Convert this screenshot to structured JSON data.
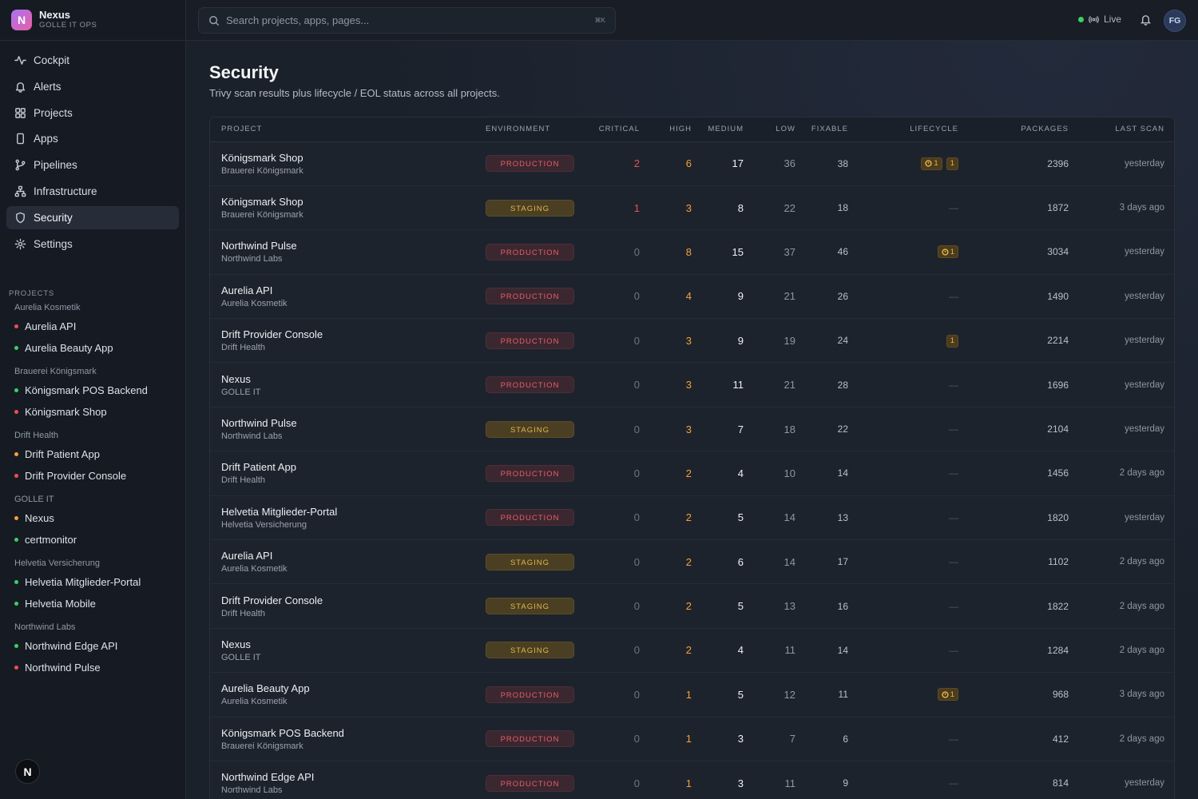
{
  "brand": {
    "logo_letter": "N",
    "name": "Nexus",
    "subtitle": "GOLLE IT OPS"
  },
  "nav": [
    {
      "label": "Cockpit",
      "icon": "activity-icon"
    },
    {
      "label": "Alerts",
      "icon": "bell-icon"
    },
    {
      "label": "Projects",
      "icon": "grid-icon"
    },
    {
      "label": "Apps",
      "icon": "phone-icon"
    },
    {
      "label": "Pipelines",
      "icon": "git-branch-icon"
    },
    {
      "label": "Infrastructure",
      "icon": "network-icon"
    },
    {
      "label": "Security",
      "icon": "shield-icon",
      "active": true
    },
    {
      "label": "Settings",
      "icon": "gear-icon"
    }
  ],
  "sidebar_projects": {
    "label": "PROJECTS",
    "groups": [
      {
        "name": "Aurelia Kosmetik",
        "items": [
          {
            "label": "Aurelia API",
            "status_color": "#ef4c56"
          },
          {
            "label": "Aurelia Beauty App",
            "status_color": "#3ccf63"
          }
        ]
      },
      {
        "name": "Brauerei Königsmark",
        "items": [
          {
            "label": "Königsmark POS Backend",
            "status_color": "#3ccf63"
          },
          {
            "label": "Königsmark Shop",
            "status_color": "#ef4c56"
          }
        ]
      },
      {
        "name": "Drift Health",
        "items": [
          {
            "label": "Drift Patient App",
            "status_color": "#f3a13a"
          },
          {
            "label": "Drift Provider Console",
            "status_color": "#ef4c56"
          }
        ]
      },
      {
        "name": "GOLLE IT",
        "items": [
          {
            "label": "Nexus",
            "status_color": "#f3a13a"
          },
          {
            "label": "certmonitor",
            "status_color": "#3ccf63"
          }
        ]
      },
      {
        "name": "Helvetia Versicherung",
        "items": [
          {
            "label": "Helvetia Mitglieder-Portal",
            "status_color": "#3ccf63"
          },
          {
            "label": "Helvetia Mobile",
            "status_color": "#3ccf63"
          }
        ]
      },
      {
        "name": "Northwind Labs",
        "items": [
          {
            "label": "Northwind Edge API",
            "status_color": "#3ccf63"
          },
          {
            "label": "Northwind Pulse",
            "status_color": "#ef4c56"
          }
        ]
      }
    ]
  },
  "bottom_badge": "N",
  "topbar": {
    "search_placeholder": "Search projects, apps, pages...",
    "shortcut": "⌘K",
    "live_label": "Live",
    "avatar_initials": "FG"
  },
  "page": {
    "title": "Security",
    "description": "Trivy scan results plus lifecycle / EOL status across all projects."
  },
  "table": {
    "columns": [
      "PROJECT",
      "ENVIRONMENT",
      "CRITICAL",
      "HIGH",
      "MEDIUM",
      "LOW",
      "FIXABLE",
      "LIFECYCLE",
      "PACKAGES",
      "LAST SCAN"
    ],
    "rows": [
      {
        "name": "Königsmark Shop",
        "client": "Brauerei Königsmark",
        "env": "PRODUCTION",
        "critical": "2",
        "high": "6",
        "medium": "17",
        "low": "36",
        "fixable": "38",
        "lifecycle": [
          {
            "type": "eol",
            "count": "1"
          },
          {
            "type": "plain",
            "count": "1"
          }
        ],
        "packages": "2396",
        "last_scan": "yesterday"
      },
      {
        "name": "Königsmark Shop",
        "client": "Brauerei Königsmark",
        "env": "STAGING",
        "critical": "1",
        "high": "3",
        "medium": "8",
        "low": "22",
        "fixable": "18",
        "lifecycle": [],
        "packages": "1872",
        "last_scan": "3 days ago"
      },
      {
        "name": "Northwind Pulse",
        "client": "Northwind Labs",
        "env": "PRODUCTION",
        "critical": "0",
        "high": "8",
        "medium": "15",
        "low": "37",
        "fixable": "46",
        "lifecycle": [
          {
            "type": "eol",
            "count": "1"
          }
        ],
        "packages": "3034",
        "last_scan": "yesterday"
      },
      {
        "name": "Aurelia API",
        "client": "Aurelia Kosmetik",
        "env": "PRODUCTION",
        "critical": "0",
        "high": "4",
        "medium": "9",
        "low": "21",
        "fixable": "26",
        "lifecycle": [],
        "packages": "1490",
        "last_scan": "yesterday"
      },
      {
        "name": "Drift Provider Console",
        "client": "Drift Health",
        "env": "PRODUCTION",
        "critical": "0",
        "high": "3",
        "medium": "9",
        "low": "19",
        "fixable": "24",
        "lifecycle": [
          {
            "type": "plain",
            "count": "1"
          }
        ],
        "packages": "2214",
        "last_scan": "yesterday"
      },
      {
        "name": "Nexus",
        "client": "GOLLE IT",
        "env": "PRODUCTION",
        "critical": "0",
        "high": "3",
        "medium": "11",
        "low": "21",
        "fixable": "28",
        "lifecycle": [],
        "packages": "1696",
        "last_scan": "yesterday"
      },
      {
        "name": "Northwind Pulse",
        "client": "Northwind Labs",
        "env": "STAGING",
        "critical": "0",
        "high": "3",
        "medium": "7",
        "low": "18",
        "fixable": "22",
        "lifecycle": [],
        "packages": "2104",
        "last_scan": "yesterday"
      },
      {
        "name": "Drift Patient App",
        "client": "Drift Health",
        "env": "PRODUCTION",
        "critical": "0",
        "high": "2",
        "medium": "4",
        "low": "10",
        "fixable": "14",
        "lifecycle": [],
        "packages": "1456",
        "last_scan": "2 days ago"
      },
      {
        "name": "Helvetia Mitglieder-Portal",
        "client": "Helvetia Versicherung",
        "env": "PRODUCTION",
        "critical": "0",
        "high": "2",
        "medium": "5",
        "low": "14",
        "fixable": "13",
        "lifecycle": [],
        "packages": "1820",
        "last_scan": "yesterday"
      },
      {
        "name": "Aurelia API",
        "client": "Aurelia Kosmetik",
        "env": "STAGING",
        "critical": "0",
        "high": "2",
        "medium": "6",
        "low": "14",
        "fixable": "17",
        "lifecycle": [],
        "packages": "1102",
        "last_scan": "2 days ago"
      },
      {
        "name": "Drift Provider Console",
        "client": "Drift Health",
        "env": "STAGING",
        "critical": "0",
        "high": "2",
        "medium": "5",
        "low": "13",
        "fixable": "16",
        "lifecycle": [],
        "packages": "1822",
        "last_scan": "2 days ago"
      },
      {
        "name": "Nexus",
        "client": "GOLLE IT",
        "env": "STAGING",
        "critical": "0",
        "high": "2",
        "medium": "4",
        "low": "11",
        "fixable": "14",
        "lifecycle": [],
        "packages": "1284",
        "last_scan": "2 days ago"
      },
      {
        "name": "Aurelia Beauty App",
        "client": "Aurelia Kosmetik",
        "env": "PRODUCTION",
        "critical": "0",
        "high": "1",
        "medium": "5",
        "low": "12",
        "fixable": "11",
        "lifecycle": [
          {
            "type": "eol",
            "count": "1"
          }
        ],
        "packages": "968",
        "last_scan": "3 days ago"
      },
      {
        "name": "Königsmark POS Backend",
        "client": "Brauerei Königsmark",
        "env": "PRODUCTION",
        "critical": "0",
        "high": "1",
        "medium": "3",
        "low": "7",
        "fixable": "6",
        "lifecycle": [],
        "packages": "412",
        "last_scan": "2 days ago"
      },
      {
        "name": "Northwind Edge API",
        "client": "Northwind Labs",
        "env": "PRODUCTION",
        "critical": "0",
        "high": "1",
        "medium": "3",
        "low": "11",
        "fixable": "9",
        "lifecycle": [],
        "packages": "814",
        "last_scan": "yesterday"
      }
    ],
    "empty_lifecycle": "—"
  },
  "colors": {
    "critical": "#ef4c56",
    "high": "#f3a13a",
    "production": "#ea5d68",
    "staging": "#e5b64a",
    "live": "#3ccf63"
  }
}
